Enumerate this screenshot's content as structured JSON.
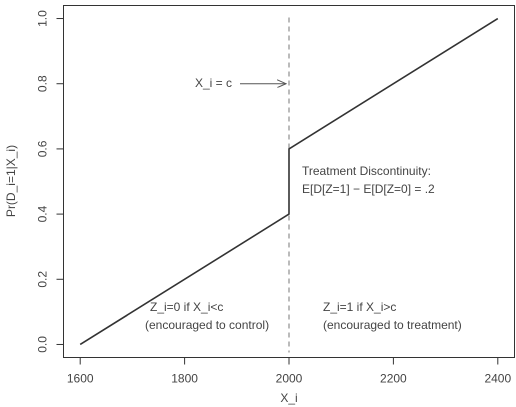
{
  "chart_data": {
    "type": "line",
    "x_label": "X_i",
    "y_label": "Pr(D_i=1|X_i)",
    "x": [
      1600,
      2000,
      2000,
      2400
    ],
    "values": [
      0,
      0.4,
      0.6,
      1.0
    ],
    "color": "#333333",
    "cutoff": 2000,
    "xlim": [
      1568,
      2432
    ],
    "xticks": [
      1600,
      1800,
      2000,
      2200,
      2400
    ],
    "ylim": [
      -0.04,
      1.04
    ],
    "yticks": [
      {
        "value": 0,
        "label": "0.0"
      },
      0.2,
      0.4,
      0.6,
      0.8,
      {
        "value": 1,
        "label": "1.0"
      }
    ],
    "annotations": [
      "X_i = c",
      "Treatment Discontinuity:",
      "E[D[Z=1] − E[D[Z=0] = .2",
      "Z_i=0 if X_i<c",
      "(encouraged to control)",
      "Z_i=1 if X_i>c",
      "(encouraged to treatment)"
    ]
  }
}
